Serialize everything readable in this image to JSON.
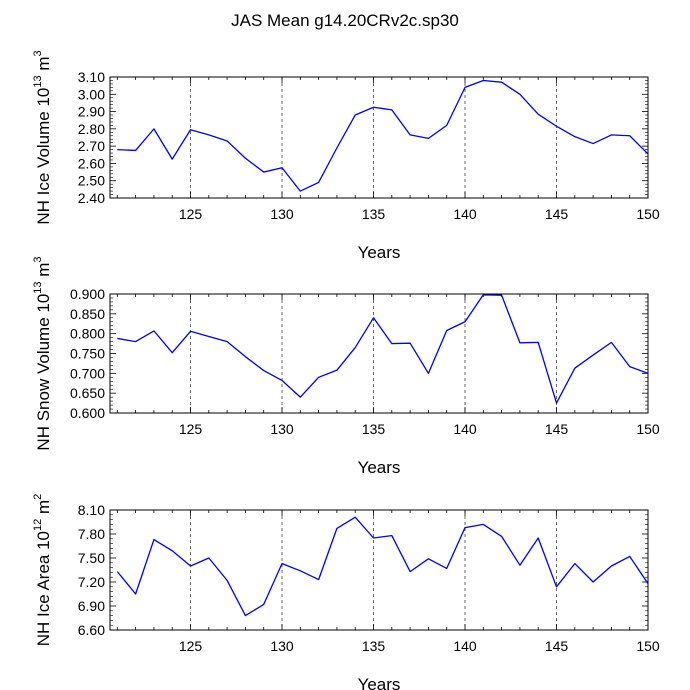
{
  "figure": {
    "title": "JAS Mean g14.20CRv2c.sp30"
  },
  "colors": {
    "line": "#0000ff",
    "axis": "#000000",
    "grid": "#000000",
    "background": "#ffffff"
  },
  "chart_data": [
    {
      "type": "line",
      "ylabel": "NH Ice Volume",
      "ylabel_unit": "10",
      "ylabel_exp": "13",
      "ylabel_unit_tail": "m",
      "ylabel_tail_exp": "3",
      "xlabel": "Years",
      "xlim": [
        120.6,
        150
      ],
      "ylim": [
        2.4,
        3.1
      ],
      "xticks": [
        125,
        130,
        135,
        140,
        145,
        150
      ],
      "xtick_labels": [
        "125",
        "130",
        "135",
        "140",
        "145",
        "150"
      ],
      "yticks": [
        2.4,
        2.5,
        2.6,
        2.7,
        2.8,
        2.9,
        3.0,
        3.1
      ],
      "ytick_labels": [
        "2.40",
        "2.50",
        "2.60",
        "2.70",
        "2.80",
        "2.90",
        "3.00",
        "3.10"
      ],
      "grid": "dashed vertical at major x ticks",
      "series": [
        {
          "name": "NH Ice Volume",
          "x": [
            121,
            122,
            123,
            124,
            125,
            126,
            127,
            128,
            129,
            130,
            131,
            132,
            133,
            134,
            135,
            136,
            137,
            138,
            139,
            140,
            141,
            142,
            143,
            144,
            145,
            146,
            147,
            148,
            149,
            150
          ],
          "values": [
            2.68,
            2.675,
            2.8,
            2.625,
            2.795,
            2.765,
            2.73,
            2.63,
            2.55,
            2.575,
            2.44,
            2.49,
            2.69,
            2.88,
            2.925,
            2.91,
            2.765,
            2.745,
            2.82,
            3.04,
            3.08,
            3.07,
            3.0,
            2.885,
            2.815,
            2.755,
            2.715,
            2.765,
            2.76,
            2.655
          ]
        }
      ]
    },
    {
      "type": "line",
      "ylabel": "NH Snow Volume",
      "ylabel_unit": "10",
      "ylabel_exp": "13",
      "ylabel_unit_tail": "m",
      "ylabel_tail_exp": "3",
      "xlabel": "Years",
      "xlim": [
        120.6,
        150
      ],
      "ylim": [
        0.6,
        0.9
      ],
      "xticks": [
        125,
        130,
        135,
        140,
        145,
        150
      ],
      "xtick_labels": [
        "125",
        "130",
        "135",
        "140",
        "145",
        "150"
      ],
      "yticks": [
        0.6,
        0.65,
        0.7,
        0.75,
        0.8,
        0.85,
        0.9
      ],
      "ytick_labels": [
        "0.600",
        "0.650",
        "0.700",
        "0.750",
        "0.800",
        "0.850",
        "0.900"
      ],
      "grid": "dashed vertical at major x ticks",
      "series": [
        {
          "name": "NH Snow Volume",
          "x": [
            121,
            122,
            123,
            124,
            125,
            126,
            127,
            128,
            129,
            130,
            131,
            132,
            133,
            134,
            135,
            136,
            137,
            138,
            139,
            140,
            141,
            142,
            143,
            144,
            145,
            146,
            147,
            148,
            149,
            150
          ],
          "values": [
            0.788,
            0.78,
            0.807,
            0.752,
            0.806,
            0.793,
            0.78,
            0.742,
            0.707,
            0.682,
            0.64,
            0.69,
            0.708,
            0.765,
            0.84,
            0.775,
            0.776,
            0.7,
            0.808,
            0.83,
            0.898,
            0.897,
            0.777,
            0.778,
            0.625,
            0.713,
            0.746,
            0.778,
            0.717,
            0.7
          ]
        }
      ]
    },
    {
      "type": "line",
      "ylabel": "NH Ice Area",
      "ylabel_unit": "10",
      "ylabel_exp": "12",
      "ylabel_unit_tail": "m",
      "ylabel_tail_exp": "2",
      "xlabel": "Years",
      "xlim": [
        120.6,
        150
      ],
      "ylim": [
        6.6,
        8.1
      ],
      "xticks": [
        125,
        130,
        135,
        140,
        145,
        150
      ],
      "xtick_labels": [
        "125",
        "130",
        "135",
        "140",
        "145",
        "150"
      ],
      "yticks": [
        6.6,
        6.9,
        7.2,
        7.5,
        7.8,
        8.1
      ],
      "ytick_labels": [
        "6.60",
        "6.90",
        "7.20",
        "7.50",
        "7.80",
        "8.10"
      ],
      "grid": "dashed vertical at major x ticks",
      "series": [
        {
          "name": "NH Ice Area",
          "x": [
            121,
            122,
            123,
            124,
            125,
            126,
            127,
            128,
            129,
            130,
            131,
            132,
            133,
            134,
            135,
            136,
            137,
            138,
            139,
            140,
            141,
            142,
            143,
            144,
            145,
            146,
            147,
            148,
            149,
            150
          ],
          "values": [
            7.33,
            7.05,
            7.73,
            7.59,
            7.4,
            7.5,
            7.22,
            6.78,
            6.92,
            7.43,
            7.34,
            7.23,
            7.87,
            8.01,
            7.75,
            7.78,
            7.33,
            7.49,
            7.37,
            7.88,
            7.92,
            7.77,
            7.41,
            7.75,
            7.14,
            7.43,
            7.2,
            7.4,
            7.52,
            7.18
          ]
        }
      ]
    }
  ]
}
